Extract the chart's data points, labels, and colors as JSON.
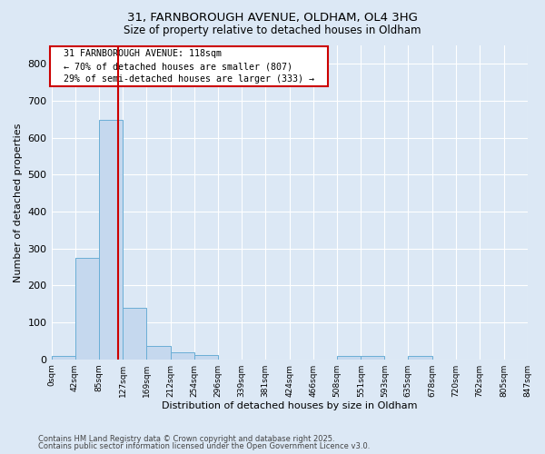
{
  "title1": "31, FARNBOROUGH AVENUE, OLDHAM, OL4 3HG",
  "title2": "Size of property relative to detached houses in Oldham",
  "xlabel": "Distribution of detached houses by size in Oldham",
  "ylabel": "Number of detached properties",
  "bar_color": "#c5d8ee",
  "bar_edge_color": "#6aaed6",
  "background_color": "#dce8f5",
  "plot_bg_color": "#dce8f5",
  "grid_color": "#ffffff",
  "bins": [
    0,
    42,
    85,
    127,
    169,
    212,
    254,
    296,
    339,
    381,
    424,
    466,
    508,
    551,
    593,
    635,
    678,
    720,
    762,
    805,
    847
  ],
  "values": [
    8,
    275,
    648,
    140,
    35,
    18,
    12,
    0,
    0,
    0,
    0,
    0,
    10,
    10,
    0,
    8,
    0,
    0,
    0,
    0
  ],
  "property_size": 118,
  "red_line_color": "#cc0000",
  "annotation_text": "  31 FARNBOROUGH AVENUE: 118sqm  \n  ← 70% of detached houses are smaller (807)  \n  29% of semi-detached houses are larger (333) →  ",
  "annotation_box_color": "#ffffff",
  "annotation_box_edge_color": "#cc0000",
  "footer1": "Contains HM Land Registry data © Crown copyright and database right 2025.",
  "footer2": "Contains public sector information licensed under the Open Government Licence v3.0.",
  "ylim": [
    0,
    850
  ],
  "yticks": [
    0,
    100,
    200,
    300,
    400,
    500,
    600,
    700,
    800
  ],
  "figwidth": 6.0,
  "figheight": 5.0,
  "dpi": 100
}
